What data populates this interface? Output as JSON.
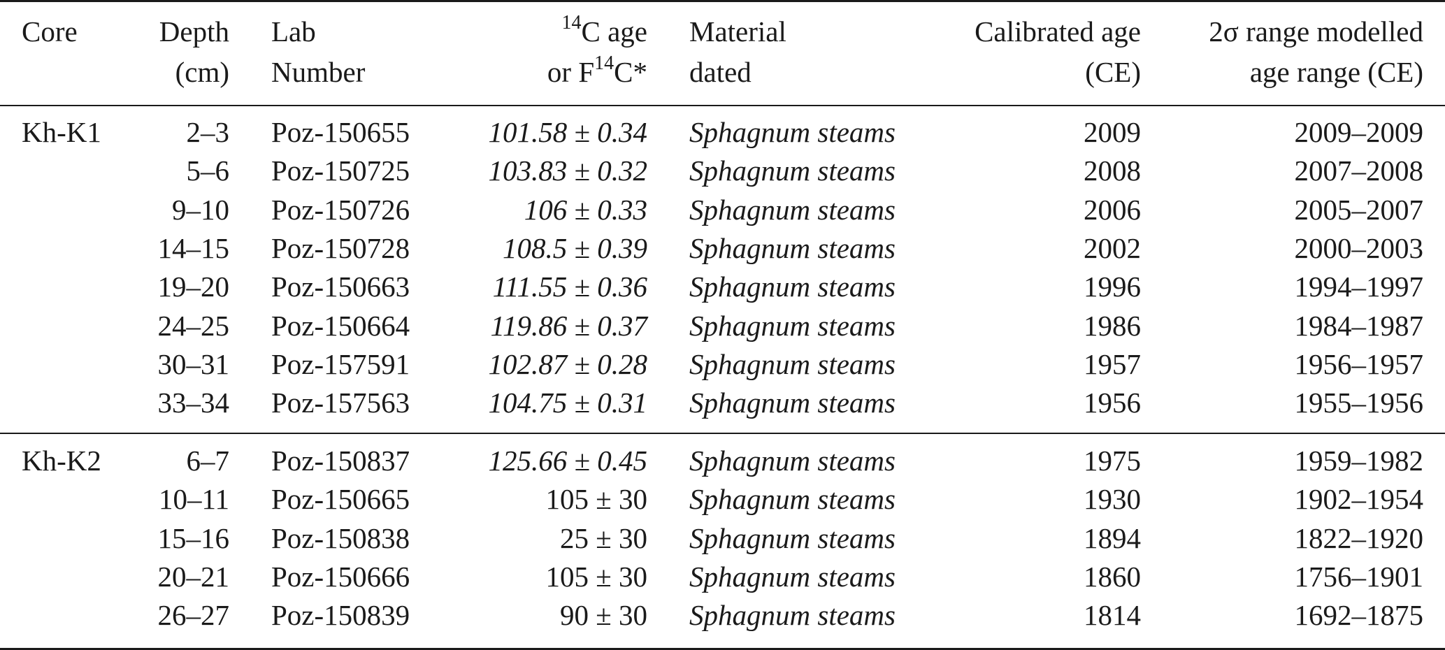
{
  "headers": {
    "core": "Core",
    "depth_line1": "Depth",
    "depth_line2": "(cm)",
    "lab_line1": "Lab",
    "lab_line2": "Number",
    "age_sup1": "14",
    "age_line1_rest": "C age",
    "age_line2_pre": "or F",
    "age_sup2": "14",
    "age_line2_post": "C*",
    "material_line1": "Material",
    "material_line2": "dated",
    "calibrated_line1": "Calibrated age",
    "calibrated_line2": "(CE)",
    "range_line1": "2σ range modelled",
    "range_line2": "age range (CE)"
  },
  "groups": [
    {
      "core": "Kh-K1",
      "rows": [
        {
          "depth": "2–3",
          "lab": "Poz-150655",
          "age": "101.58 ± 0.34",
          "age_italic": true,
          "material": "Sphagnum steams",
          "cal": "2009",
          "range": "2009–2009"
        },
        {
          "depth": "5–6",
          "lab": "Poz-150725",
          "age": "103.83 ± 0.32",
          "age_italic": true,
          "material": "Sphagnum steams",
          "cal": "2008",
          "range": "2007–2008"
        },
        {
          "depth": "9–10",
          "lab": "Poz-150726",
          "age": "106 ± 0.33",
          "age_italic": true,
          "material": "Sphagnum steams",
          "cal": "2006",
          "range": "2005–2007"
        },
        {
          "depth": "14–15",
          "lab": "Poz-150728",
          "age": "108.5 ± 0.39",
          "age_italic": true,
          "material": "Sphagnum steams",
          "cal": "2002",
          "range": "2000–2003"
        },
        {
          "depth": "19–20",
          "lab": "Poz-150663",
          "age": "111.55 ± 0.36",
          "age_italic": true,
          "material": "Sphagnum steams",
          "cal": "1996",
          "range": "1994–1997"
        },
        {
          "depth": "24–25",
          "lab": "Poz-150664",
          "age": "119.86 ± 0.37",
          "age_italic": true,
          "material": "Sphagnum steams",
          "cal": "1986",
          "range": "1984–1987"
        },
        {
          "depth": "30–31",
          "lab": "Poz-157591",
          "age": "102.87 ± 0.28",
          "age_italic": true,
          "material": "Sphagnum steams",
          "cal": "1957",
          "range": "1956–1957"
        },
        {
          "depth": "33–34",
          "lab": "Poz-157563",
          "age": "104.75 ± 0.31",
          "age_italic": true,
          "material": "Sphagnum steams",
          "cal": "1956",
          "range": "1955–1956"
        }
      ]
    },
    {
      "core": "Kh-K2",
      "rows": [
        {
          "depth": "6–7",
          "lab": "Poz-150837",
          "age": "125.66 ± 0.45",
          "age_italic": true,
          "material": "Sphagnum steams",
          "cal": "1975",
          "range": "1959–1982"
        },
        {
          "depth": "10–11",
          "lab": "Poz-150665",
          "age": "105 ± 30",
          "age_italic": false,
          "material": "Sphagnum steams",
          "cal": "1930",
          "range": "1902–1954"
        },
        {
          "depth": "15–16",
          "lab": "Poz-150838",
          "age": "25 ± 30",
          "age_italic": false,
          "material": "Sphagnum steams",
          "cal": "1894",
          "range": "1822–1920"
        },
        {
          "depth": "20–21",
          "lab": "Poz-150666",
          "age": "105 ± 30",
          "age_italic": false,
          "material": "Sphagnum steams",
          "cal": "1860",
          "range": "1756–1901"
        },
        {
          "depth": "26–27",
          "lab": "Poz-150839",
          "age": "90 ± 30",
          "age_italic": false,
          "material": "Sphagnum steams",
          "cal": "1814",
          "range": "1692–1875"
        }
      ]
    }
  ]
}
